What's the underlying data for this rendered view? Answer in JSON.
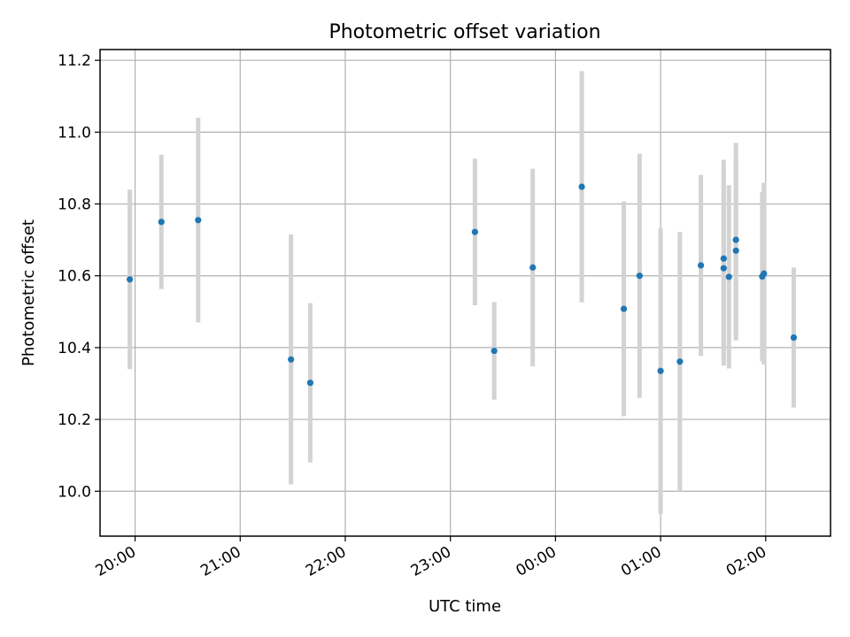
{
  "chart_data": {
    "type": "scatter",
    "title": "Photometric offset variation",
    "xlabel": "UTC time",
    "ylabel": "Photometric offset",
    "x_ticks": [
      "20:00",
      "21:00",
      "22:00",
      "23:00",
      "00:00",
      "01:00",
      "02:00"
    ],
    "x_tick_hours": [
      20,
      21,
      22,
      23,
      24,
      25,
      26
    ],
    "xlim": [
      "19:40",
      "02:37"
    ],
    "y_ticks": [
      "10.0",
      "10.2",
      "10.4",
      "10.6",
      "10.8",
      "11.0",
      "11.2"
    ],
    "ylim": [
      9.875,
      11.23
    ],
    "grid": true,
    "marker_color": "#1f77b4",
    "errorbar_color": "#d3d3d3",
    "points": [
      {
        "time": "19:57",
        "y": 10.59,
        "err": 0.25
      },
      {
        "time": "20:15",
        "y": 10.75,
        "err": 0.187
      },
      {
        "time": "20:36",
        "y": 10.755,
        "err": 0.285
      },
      {
        "time": "21:29",
        "y": 10.367,
        "err": 0.348
      },
      {
        "time": "21:40",
        "y": 10.302,
        "err": 0.222
      },
      {
        "time": "23:14",
        "y": 10.722,
        "err": 0.204
      },
      {
        "time": "23:25",
        "y": 10.391,
        "err": 0.136
      },
      {
        "time": "23:47",
        "y": 10.623,
        "err": 0.275
      },
      {
        "time": "00:15",
        "y": 10.848,
        "err": 0.322
      },
      {
        "time": "00:39",
        "y": 10.508,
        "err": 0.299
      },
      {
        "time": "00:48",
        "y": 10.6,
        "err": 0.34
      },
      {
        "time": "01:00",
        "y": 10.335,
        "err": 0.398
      },
      {
        "time": "01:11",
        "y": 10.361,
        "err": 0.361
      },
      {
        "time": "01:23",
        "y": 10.629,
        "err": 0.252
      },
      {
        "time": "01:36",
        "y": 10.621,
        "err": 0.271
      },
      {
        "time": "01:36",
        "y": 10.648,
        "err": 0.275
      },
      {
        "time": "01:39",
        "y": 10.597,
        "err": 0.255
      },
      {
        "time": "01:43",
        "y": 10.67,
        "err": 0.25
      },
      {
        "time": "01:43",
        "y": 10.7,
        "err": 0.27
      },
      {
        "time": "01:58",
        "y": 10.598,
        "err": 0.236
      },
      {
        "time": "01:59",
        "y": 10.606,
        "err": 0.253
      },
      {
        "time": "02:16",
        "y": 10.428,
        "err": 0.195
      }
    ]
  }
}
